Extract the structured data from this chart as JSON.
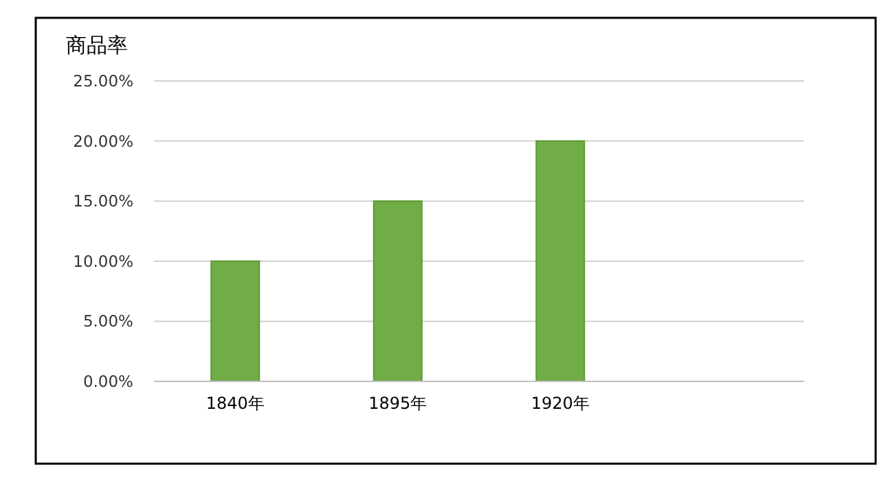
{
  "chart_data": {
    "type": "bar",
    "title": "商品率",
    "categories": [
      "1840年",
      "1895年",
      "1920年",
      null
    ],
    "values": [
      10,
      15,
      20,
      null
    ],
    "color": "#70ad47",
    "ylim": [
      0,
      25
    ],
    "yticks": [
      {
        "value": 0,
        "label": "0.00%"
      },
      {
        "value": 5,
        "label": "5.00%"
      },
      {
        "value": 10,
        "label": "10.00%"
      },
      {
        "value": 15,
        "label": "15.00%"
      },
      {
        "value": 20,
        "label": "20.00%"
      },
      {
        "value": 25,
        "label": "25.00%"
      }
    ],
    "grid": "y"
  }
}
